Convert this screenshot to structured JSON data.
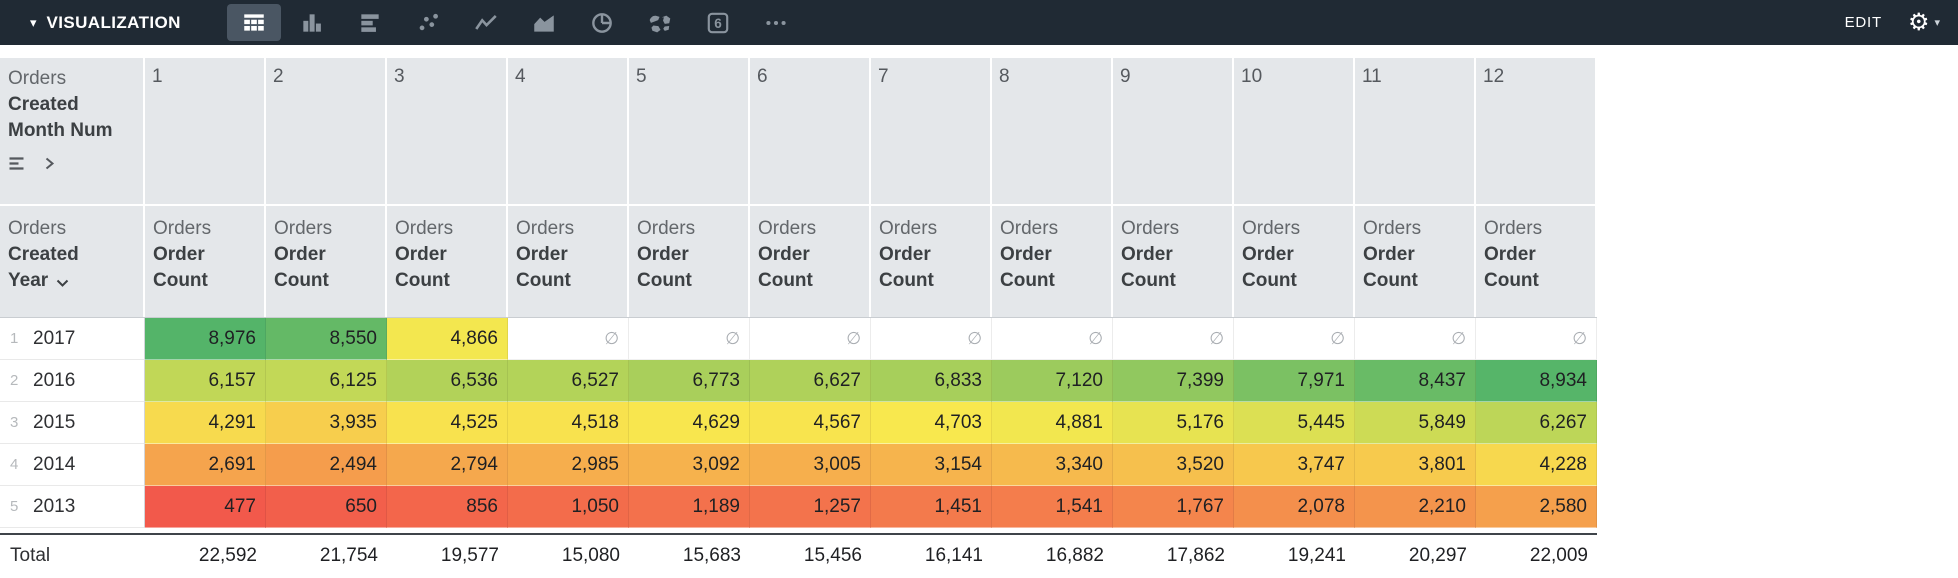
{
  "toolbar": {
    "title": "VISUALIZATION",
    "edit_label": "EDIT",
    "vis_types": [
      {
        "name": "table",
        "selected": true
      },
      {
        "name": "column-chart",
        "selected": false
      },
      {
        "name": "bar-chart",
        "selected": false
      },
      {
        "name": "scatterplot",
        "selected": false
      },
      {
        "name": "line-chart",
        "selected": false
      },
      {
        "name": "area-chart",
        "selected": false
      },
      {
        "name": "pie-chart",
        "selected": false
      },
      {
        "name": "map",
        "selected": false
      },
      {
        "name": "single-value",
        "selected": false,
        "glyph": "6"
      },
      {
        "name": "more-options",
        "selected": false
      }
    ]
  },
  "table": {
    "pivot_field": {
      "group": "Orders",
      "name_line1": "Created",
      "name_line2": "Month Num"
    },
    "row_field": {
      "group": "Orders",
      "name_line1": "Created",
      "name_line2": "Year"
    },
    "measure": {
      "group": "Orders",
      "name_line1": "Order",
      "name_line2": "Count"
    },
    "pivot_values": [
      "1",
      "2",
      "3",
      "4",
      "5",
      "6",
      "7",
      "8",
      "9",
      "10",
      "11",
      "12"
    ],
    "null_symbol": "∅",
    "heatmap": {
      "low": "#F2594B",
      "mid": "#F8E94E",
      "high": "#54B469"
    },
    "rows": [
      {
        "index": "1",
        "year": "2017",
        "values": [
          "8,976",
          "8,550",
          "4,866",
          null,
          null,
          null,
          null,
          null,
          null,
          null,
          null,
          null
        ]
      },
      {
        "index": "2",
        "year": "2016",
        "values": [
          "6,157",
          "6,125",
          "6,536",
          "6,527",
          "6,773",
          "6,627",
          "6,833",
          "7,120",
          "7,399",
          "7,971",
          "8,437",
          "8,934"
        ]
      },
      {
        "index": "3",
        "year": "2015",
        "values": [
          "4,291",
          "3,935",
          "4,525",
          "4,518",
          "4,629",
          "4,567",
          "4,703",
          "4,881",
          "5,176",
          "5,445",
          "5,849",
          "6,267"
        ]
      },
      {
        "index": "4",
        "year": "2014",
        "values": [
          "2,691",
          "2,494",
          "2,794",
          "2,985",
          "3,092",
          "3,005",
          "3,154",
          "3,340",
          "3,520",
          "3,747",
          "3,801",
          "4,228"
        ]
      },
      {
        "index": "5",
        "year": "2013",
        "values": [
          "477",
          "650",
          "856",
          "1,050",
          "1,189",
          "1,257",
          "1,451",
          "1,541",
          "1,767",
          "2,078",
          "2,210",
          "2,580"
        ]
      }
    ],
    "total_label": "Total",
    "totals": [
      "22,592",
      "21,754",
      "19,577",
      "15,080",
      "15,683",
      "15,456",
      "16,141",
      "16,882",
      "17,862",
      "19,241",
      "20,297",
      "22,009"
    ]
  }
}
